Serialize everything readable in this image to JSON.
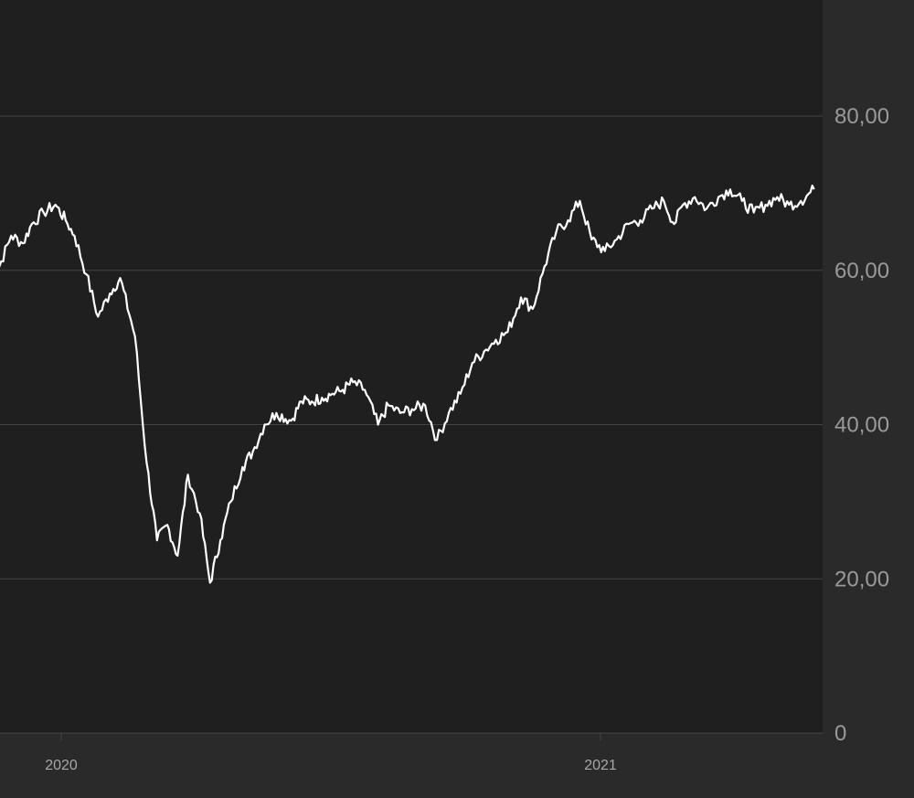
{
  "colors": {
    "background": "#2a2a2a",
    "plot_background": "#1f1f1f",
    "grid": "#444444",
    "line": "#ffffff",
    "tick_text": "#9a9a9a"
  },
  "chart_data": {
    "type": "line",
    "title": "",
    "xlabel": "",
    "ylabel": "",
    "ylim": [
      0,
      90
    ],
    "grid": true,
    "y_axis_position": "right",
    "y_ticks": [
      {
        "value": 0,
        "label": "0"
      },
      {
        "value": 20,
        "label": "20,00"
      },
      {
        "value": 40,
        "label": "40,00"
      },
      {
        "value": 60,
        "label": "60,00"
      },
      {
        "value": 80,
        "label": "80,00"
      }
    ],
    "x_ticks": [
      {
        "value": "2020-01-01",
        "label": "2020"
      },
      {
        "value": "2021-01-01",
        "label": "2021"
      }
    ],
    "xlim": [
      "2019-11-12",
      "2021-05-26"
    ],
    "series": [
      {
        "x": [
          "2019-11-12",
          "2019-11-20",
          "2019-11-28",
          "2019-12-06",
          "2019-12-12",
          "2019-12-20",
          "2019-12-28",
          "2020-01-04",
          "2020-01-10",
          "2020-01-18",
          "2020-01-26",
          "2020-02-03",
          "2020-02-10",
          "2020-02-20",
          "2020-02-28",
          "2020-03-06",
          "2020-03-13",
          "2020-03-20",
          "2020-03-27",
          "2020-04-04",
          "2020-04-11",
          "2020-04-18",
          "2020-04-25",
          "2020-05-03",
          "2020-05-10",
          "2020-05-18",
          "2020-05-26",
          "2020-06-05",
          "2020-06-12",
          "2020-06-19",
          "2020-06-26",
          "2020-07-03",
          "2020-07-10",
          "2020-07-17",
          "2020-07-25",
          "2020-08-03",
          "2020-08-10",
          "2020-08-18",
          "2020-08-26",
          "2020-09-04",
          "2020-09-12",
          "2020-09-20",
          "2020-09-28",
          "2020-10-06",
          "2020-10-14",
          "2020-10-22",
          "2020-10-30",
          "2020-11-08",
          "2020-11-16",
          "2020-11-24",
          "2020-12-02",
          "2020-12-10",
          "2020-12-18",
          "2020-12-26",
          "2021-01-04",
          "2021-01-12",
          "2021-01-20",
          "2021-01-28",
          "2021-02-05",
          "2021-02-13",
          "2021-02-20",
          "2021-02-26",
          "2021-03-06",
          "2021-03-14",
          "2021-03-22",
          "2021-03-30",
          "2021-04-07",
          "2021-04-15",
          "2021-04-23",
          "2021-05-01",
          "2021-05-09",
          "2021-05-17",
          "2021-05-26"
        ],
        "values": [
          64.0,
          60.5,
          64.5,
          63.5,
          66.0,
          67.5,
          68.5,
          66.5,
          64.5,
          59.5,
          54.0,
          57.0,
          59.0,
          51.5,
          35.0,
          25.0,
          27.0,
          23.0,
          33.5,
          28.5,
          19.5,
          25.0,
          30.0,
          34.5,
          36.5,
          40.0,
          41.5,
          40.5,
          43.0,
          43.0,
          43.5,
          44.0,
          44.5,
          45.5,
          44.5,
          40.0,
          42.5,
          41.5,
          42.0,
          42.5,
          38.0,
          41.5,
          44.0,
          48.0,
          49.5,
          51.0,
          52.0,
          56.5,
          55.0,
          60.5,
          65.0,
          66.5,
          69.0,
          64.0,
          62.5,
          64.0,
          66.0,
          66.5,
          68.0,
          69.0,
          66.0,
          68.5,
          69.5,
          68.0,
          69.5,
          70.5,
          69.0,
          67.5,
          68.5,
          69.5,
          68.5,
          69.0,
          70.5
        ]
      }
    ]
  }
}
